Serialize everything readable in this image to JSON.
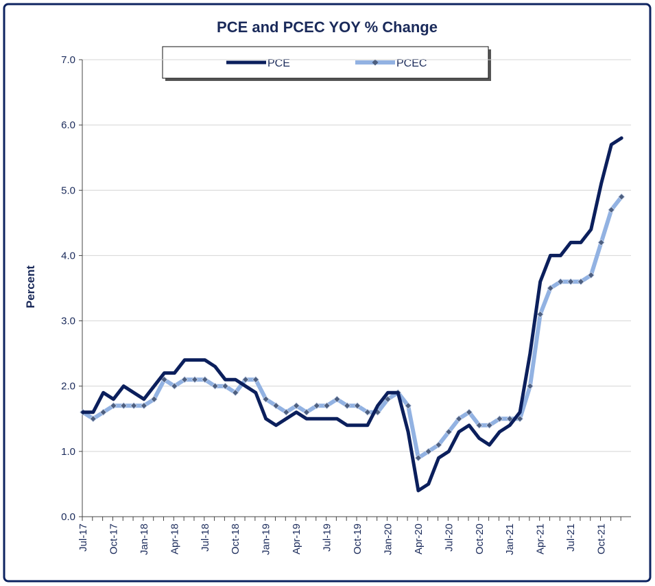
{
  "chart_data": {
    "type": "line",
    "title": "PCE and PCEC YOY % Change",
    "y_label": "Percent",
    "categories": [
      "Jul-17",
      null,
      null,
      "Oct-17",
      null,
      null,
      "Jan-18",
      null,
      null,
      "Apr-18",
      null,
      null,
      "Jul-18",
      null,
      null,
      "Oct-18",
      null,
      null,
      "Jan-19",
      null,
      null,
      "Apr-19",
      null,
      null,
      "Jul-19",
      null,
      null,
      "Oct-19",
      null,
      null,
      "Jan-20",
      null,
      null,
      "Apr-20",
      null,
      null,
      "Jul-20",
      null,
      null,
      "Oct-20",
      null,
      null,
      "Jan-21",
      null,
      null,
      "Apr-21",
      null,
      null,
      "Jul-21",
      null,
      null,
      "Oct-21",
      null,
      null
    ],
    "series": [
      {
        "name": "PCE",
        "color": "#0b1f5c",
        "marker": false,
        "values": [
          1.6,
          1.6,
          1.9,
          1.8,
          2.0,
          1.9,
          1.8,
          2.0,
          2.2,
          2.2,
          2.4,
          2.4,
          2.4,
          2.3,
          2.1,
          2.1,
          2.0,
          1.9,
          1.5,
          1.4,
          1.5,
          1.6,
          1.5,
          1.5,
          1.5,
          1.5,
          1.4,
          1.4,
          1.4,
          1.7,
          1.9,
          1.9,
          1.3,
          0.4,
          0.5,
          0.9,
          1.0,
          1.3,
          1.4,
          1.2,
          1.1,
          1.3,
          1.4,
          1.6,
          2.5,
          3.6,
          4.0,
          4.0,
          4.2,
          4.2,
          4.4,
          5.1,
          5.7,
          5.8
        ]
      },
      {
        "name": "PCEC",
        "color": "#92b2e2",
        "marker": true,
        "marker_color": "#4d5f80",
        "values": [
          1.6,
          1.5,
          1.6,
          1.7,
          1.7,
          1.7,
          1.7,
          1.8,
          2.1,
          2.0,
          2.1,
          2.1,
          2.1,
          2.0,
          2.0,
          1.9,
          2.1,
          2.1,
          1.8,
          1.7,
          1.6,
          1.7,
          1.6,
          1.7,
          1.7,
          1.8,
          1.7,
          1.7,
          1.6,
          1.6,
          1.8,
          1.9,
          1.7,
          0.9,
          1.0,
          1.1,
          1.3,
          1.5,
          1.6,
          1.4,
          1.4,
          1.5,
          1.5,
          1.5,
          2.0,
          3.1,
          3.5,
          3.6,
          3.6,
          3.6,
          3.7,
          4.2,
          4.7,
          4.9
        ]
      }
    ],
    "ylim": [
      0,
      7
    ],
    "yticks": [
      {
        "value": 0,
        "label": "0.0"
      },
      {
        "value": 1,
        "label": "1.0"
      },
      {
        "value": 2,
        "label": "2.0"
      },
      {
        "value": 3,
        "label": "3.0"
      },
      {
        "value": 4,
        "label": "4.0"
      },
      {
        "value": 5,
        "label": "5.0"
      },
      {
        "value": 6,
        "label": "6.0"
      },
      {
        "value": 7,
        "label": "7.0"
      }
    ],
    "grid": true,
    "legend": "top"
  }
}
